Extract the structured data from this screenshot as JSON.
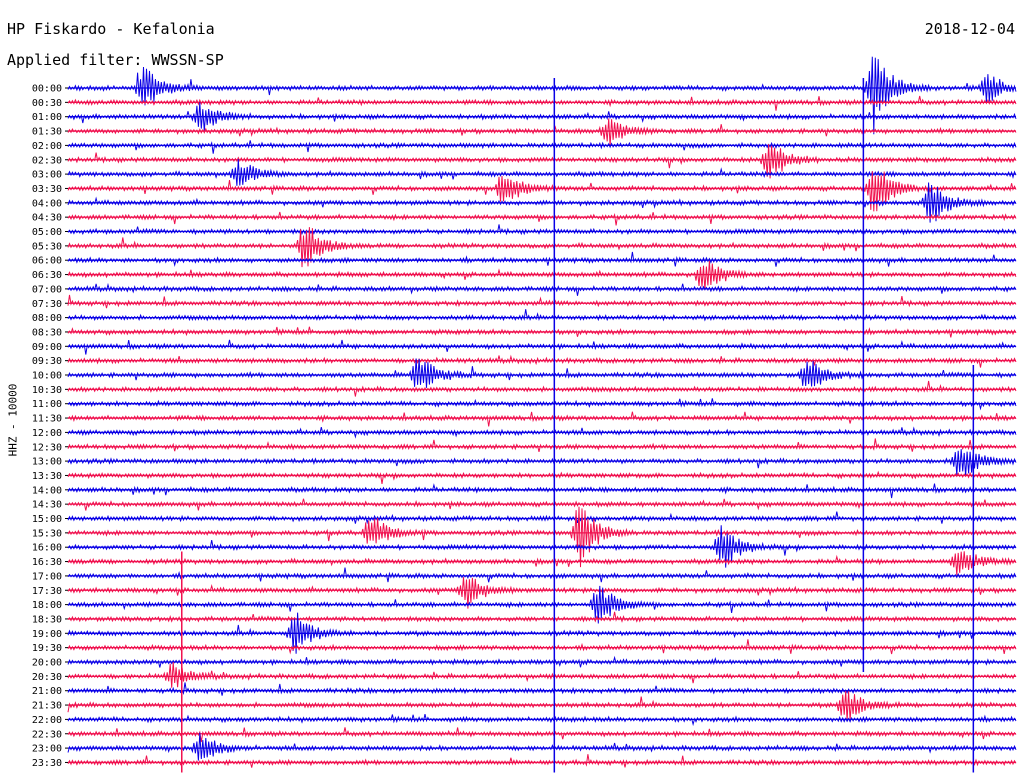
{
  "header": {
    "station": "HP Fiskardo - Kefalonia",
    "filter": "Applied filter: WWSSN-SP",
    "date": "2018-12-04"
  },
  "axis": {
    "ylabel": "HHZ - 10000"
  },
  "colors": {
    "trace_a": "#0a00e6",
    "trace_b": "#f0104e"
  },
  "chart_data": {
    "type": "line",
    "title": "HP Fiskardo - Kefalonia",
    "subtitle": "Applied filter: WWSSN-SP",
    "ylabel": "HHZ - 10000",
    "xlabel": "",
    "grid": false,
    "y_ticks": [
      "00:00",
      "00:30",
      "01:00",
      "01:30",
      "02:00",
      "02:30",
      "03:00",
      "03:30",
      "04:00",
      "04:30",
      "05:00",
      "05:30",
      "06:00",
      "06:30",
      "07:00",
      "07:30",
      "08:00",
      "08:30",
      "09:00",
      "09:30",
      "10:00",
      "10:30",
      "11:00",
      "11:30",
      "12:00",
      "12:30",
      "13:00",
      "13:30",
      "14:00",
      "14:30",
      "15:00",
      "15:30",
      "16:00",
      "16:30",
      "17:00",
      "17:30",
      "18:00",
      "18:30",
      "19:00",
      "19:30",
      "20:00",
      "20:30",
      "21:00",
      "21:30",
      "22:00",
      "22:30",
      "23:00",
      "23:30"
    ],
    "series": [
      {
        "values": [
          0,
          0,
          0,
          0,
          0,
          0,
          0,
          0,
          0,
          0,
          0,
          0,
          0,
          0,
          0,
          0,
          0,
          0,
          0,
          0,
          0,
          0,
          0,
          0,
          0,
          0,
          0,
          0,
          0,
          0,
          0,
          0,
          0,
          0,
          0,
          0,
          0,
          0,
          0,
          0,
          0,
          0,
          0,
          0,
          0,
          0,
          0,
          0
        ]
      }
    ],
    "events": [
      {
        "row": 0,
        "x": 0.08,
        "amp": 3.0
      },
      {
        "row": 0,
        "x": 0.85,
        "amp": 6.0
      },
      {
        "row": 0,
        "x": 0.97,
        "amp": 2.0
      },
      {
        "row": 2,
        "x": 0.14,
        "amp": 2.2
      },
      {
        "row": 3,
        "x": 0.57,
        "amp": 2.0
      },
      {
        "row": 5,
        "x": 0.74,
        "amp": 3.0
      },
      {
        "row": 6,
        "x": 0.18,
        "amp": 2.0
      },
      {
        "row": 7,
        "x": 0.46,
        "amp": 2.5
      },
      {
        "row": 7,
        "x": 0.85,
        "amp": 4.0
      },
      {
        "row": 8,
        "x": 0.91,
        "amp": 3.0
      },
      {
        "row": 11,
        "x": 0.25,
        "amp": 3.5
      },
      {
        "row": 13,
        "x": 0.67,
        "amp": 2.5
      },
      {
        "row": 20,
        "x": 0.37,
        "amp": 3.0
      },
      {
        "row": 20,
        "x": 0.78,
        "amp": 2.5
      },
      {
        "row": 26,
        "x": 0.94,
        "amp": 3.0
      },
      {
        "row": 31,
        "x": 0.32,
        "amp": 2.5
      },
      {
        "row": 31,
        "x": 0.54,
        "amp": 4.5
      },
      {
        "row": 32,
        "x": 0.69,
        "amp": 3.0
      },
      {
        "row": 33,
        "x": 0.94,
        "amp": 2.2
      },
      {
        "row": 35,
        "x": 0.42,
        "amp": 2.5
      },
      {
        "row": 36,
        "x": 0.56,
        "amp": 3.0
      },
      {
        "row": 38,
        "x": 0.24,
        "amp": 2.8
      },
      {
        "row": 41,
        "x": 0.11,
        "amp": 1.8
      },
      {
        "row": 43,
        "x": 0.82,
        "amp": 2.5
      },
      {
        "row": 46,
        "x": 0.14,
        "amp": 2.0
      }
    ]
  }
}
